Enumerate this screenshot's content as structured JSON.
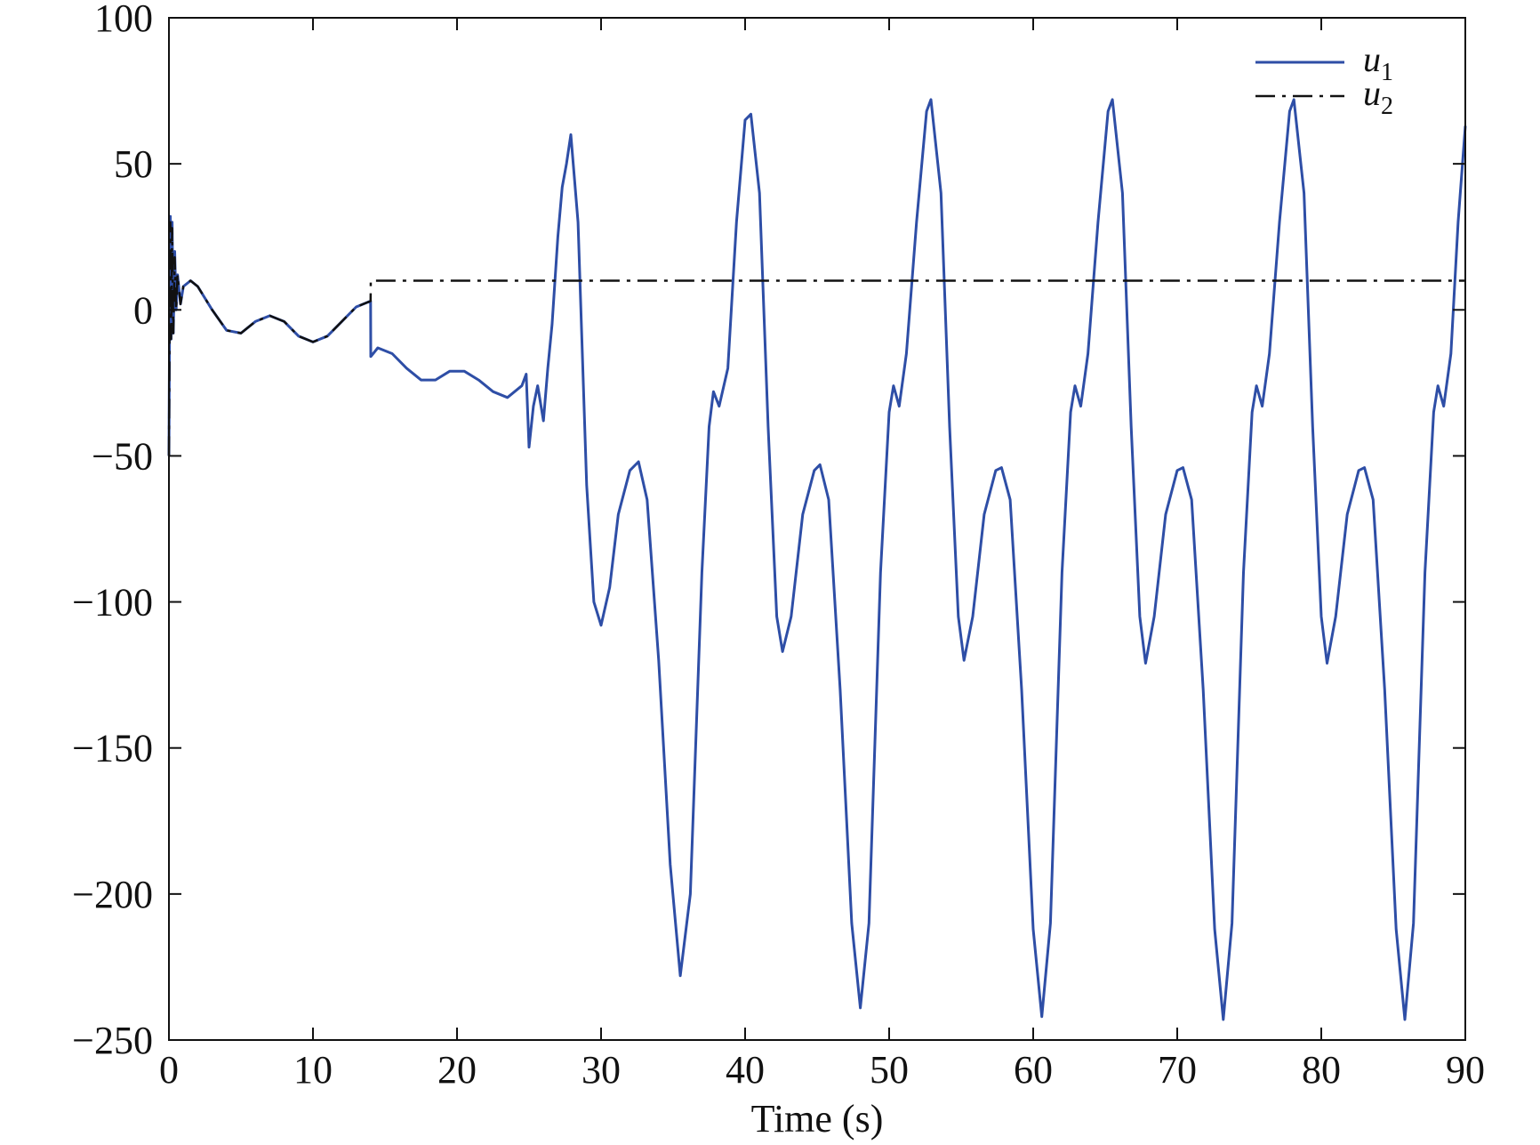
{
  "chart_data": {
    "type": "line",
    "title": "",
    "xlabel": "Time (s)",
    "ylabel": "",
    "xlim": [
      0,
      90
    ],
    "ylim": [
      -250,
      100
    ],
    "xticks": [
      0,
      10,
      20,
      30,
      40,
      50,
      60,
      70,
      80,
      90
    ],
    "xtick_labels": [
      "0",
      "10",
      "20",
      "30",
      "40",
      "50",
      "60",
      "70",
      "80",
      "90"
    ],
    "yticks": [
      100,
      50,
      0,
      -50,
      -100,
      -150,
      -200,
      -250
    ],
    "ytick_labels": [
      "100",
      "50",
      "0",
      "−50",
      "−100",
      "−150",
      "−200",
      "−250"
    ],
    "grid": false,
    "legend_position": "top-right",
    "series": [
      {
        "name": "u1",
        "legend_base": "u",
        "legend_sub": "1",
        "color": "#2e4ea6",
        "style": "solid",
        "points": [
          [
            0,
            -50
          ],
          [
            0.05,
            0
          ],
          [
            0.1,
            32
          ],
          [
            0.15,
            -10
          ],
          [
            0.22,
            30
          ],
          [
            0.3,
            -8
          ],
          [
            0.4,
            20
          ],
          [
            0.5,
            0
          ],
          [
            0.6,
            12
          ],
          [
            0.8,
            2
          ],
          [
            1,
            8
          ],
          [
            1.5,
            10
          ],
          [
            2,
            8
          ],
          [
            3,
            0
          ],
          [
            4,
            -7
          ],
          [
            5,
            -8
          ],
          [
            6,
            -4
          ],
          [
            7,
            -2
          ],
          [
            8,
            -4
          ],
          [
            9,
            -9
          ],
          [
            10,
            -11
          ],
          [
            11,
            -9
          ],
          [
            12,
            -4
          ],
          [
            13,
            1
          ],
          [
            14,
            3
          ],
          [
            14.01,
            -16
          ],
          [
            14.5,
            -13
          ],
          [
            15.5,
            -15
          ],
          [
            16.5,
            -20
          ],
          [
            17.5,
            -24
          ],
          [
            18.5,
            -24
          ],
          [
            19.5,
            -21
          ],
          [
            20.5,
            -21
          ],
          [
            21.5,
            -24
          ],
          [
            22.5,
            -28
          ],
          [
            23.5,
            -30
          ],
          [
            24.5,
            -26
          ],
          [
            24.8,
            -22
          ],
          [
            25,
            -47
          ],
          [
            25.3,
            -33
          ],
          [
            25.6,
            -26
          ],
          [
            26,
            -38
          ],
          [
            26.3,
            -20
          ],
          [
            26.6,
            -5
          ],
          [
            27.0,
            25
          ],
          [
            27.3,
            42
          ],
          [
            27.6,
            50
          ],
          [
            27.9,
            60
          ],
          [
            28.4,
            30
          ],
          [
            29,
            -60
          ],
          [
            29.5,
            -100
          ],
          [
            30,
            -108
          ],
          [
            30.6,
            -95
          ],
          [
            31.2,
            -70
          ],
          [
            32.0,
            -55
          ],
          [
            32.6,
            -52
          ],
          [
            33.2,
            -65
          ],
          [
            34.0,
            -120
          ],
          [
            34.8,
            -190
          ],
          [
            35.5,
            -228
          ],
          [
            36.2,
            -200
          ],
          [
            37.0,
            -90
          ],
          [
            37.5,
            -40
          ],
          [
            37.8,
            -28
          ],
          [
            38.2,
            -33
          ],
          [
            38.8,
            -20
          ],
          [
            39.4,
            30
          ],
          [
            40.0,
            65
          ],
          [
            40.4,
            67
          ],
          [
            41.0,
            40
          ],
          [
            41.6,
            -40
          ],
          [
            42.2,
            -105
          ],
          [
            42.6,
            -117
          ],
          [
            43.2,
            -105
          ],
          [
            44.0,
            -70
          ],
          [
            44.8,
            -55
          ],
          [
            45.2,
            -53
          ],
          [
            45.8,
            -65
          ],
          [
            46.6,
            -130
          ],
          [
            47.4,
            -210
          ],
          [
            48.0,
            -239
          ],
          [
            48.6,
            -210
          ],
          [
            49.4,
            -90
          ],
          [
            50.0,
            -35
          ],
          [
            50.3,
            -26
          ],
          [
            50.7,
            -33
          ],
          [
            51.2,
            -15
          ],
          [
            51.9,
            30
          ],
          [
            52.6,
            68
          ],
          [
            52.9,
            72
          ],
          [
            53.6,
            40
          ],
          [
            54.2,
            -40
          ],
          [
            54.8,
            -105
          ],
          [
            55.2,
            -120
          ],
          [
            55.8,
            -105
          ],
          [
            56.6,
            -70
          ],
          [
            57.4,
            -55
          ],
          [
            57.8,
            -54
          ],
          [
            58.4,
            -65
          ],
          [
            59.2,
            -130
          ],
          [
            60.0,
            -212
          ],
          [
            60.6,
            -242
          ],
          [
            61.2,
            -210
          ],
          [
            62.0,
            -90
          ],
          [
            62.6,
            -35
          ],
          [
            62.9,
            -26
          ],
          [
            63.3,
            -33
          ],
          [
            63.8,
            -15
          ],
          [
            64.5,
            30
          ],
          [
            65.2,
            68
          ],
          [
            65.5,
            72
          ],
          [
            66.2,
            40
          ],
          [
            66.8,
            -40
          ],
          [
            67.4,
            -105
          ],
          [
            67.8,
            -121
          ],
          [
            68.4,
            -105
          ],
          [
            69.2,
            -70
          ],
          [
            70.0,
            -55
          ],
          [
            70.4,
            -54
          ],
          [
            71.0,
            -65
          ],
          [
            71.8,
            -130
          ],
          [
            72.6,
            -212
          ],
          [
            73.2,
            -243
          ],
          [
            73.8,
            -210
          ],
          [
            74.6,
            -90
          ],
          [
            75.2,
            -35
          ],
          [
            75.5,
            -26
          ],
          [
            75.9,
            -33
          ],
          [
            76.4,
            -15
          ],
          [
            77.1,
            30
          ],
          [
            77.8,
            68
          ],
          [
            78.1,
            72
          ],
          [
            78.8,
            40
          ],
          [
            79.4,
            -40
          ],
          [
            80.0,
            -105
          ],
          [
            80.4,
            -121
          ],
          [
            81.0,
            -105
          ],
          [
            81.8,
            -70
          ],
          [
            82.6,
            -55
          ],
          [
            83.0,
            -54
          ],
          [
            83.6,
            -65
          ],
          [
            84.4,
            -130
          ],
          [
            85.2,
            -212
          ],
          [
            85.8,
            -243
          ],
          [
            86.4,
            -210
          ],
          [
            87.2,
            -90
          ],
          [
            87.8,
            -35
          ],
          [
            88.1,
            -26
          ],
          [
            88.5,
            -33
          ],
          [
            89.0,
            -15
          ],
          [
            89.5,
            30
          ],
          [
            90,
            63
          ]
        ]
      },
      {
        "name": "u2",
        "legend_base": "u",
        "legend_sub": "2",
        "color": "#111111",
        "style": "dashdot",
        "points": [
          [
            0,
            -50
          ],
          [
            0.05,
            0
          ],
          [
            0.1,
            30
          ],
          [
            0.15,
            -10
          ],
          [
            0.22,
            28
          ],
          [
            0.3,
            -8
          ],
          [
            0.4,
            18
          ],
          [
            0.5,
            0
          ],
          [
            0.6,
            12
          ],
          [
            0.8,
            2
          ],
          [
            1,
            8
          ],
          [
            1.5,
            10
          ],
          [
            2,
            8
          ],
          [
            3,
            0
          ],
          [
            4,
            -7
          ],
          [
            5,
            -8
          ],
          [
            6,
            -4
          ],
          [
            7,
            -2
          ],
          [
            8,
            -4
          ],
          [
            9,
            -9
          ],
          [
            10,
            -11
          ],
          [
            11,
            -9
          ],
          [
            12,
            -4
          ],
          [
            13,
            1
          ],
          [
            14,
            3
          ],
          [
            14.01,
            10
          ],
          [
            90,
            10
          ]
        ]
      }
    ]
  }
}
